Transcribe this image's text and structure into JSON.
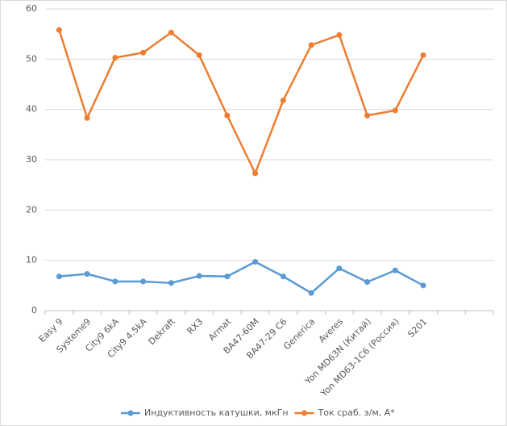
{
  "chart_data": {
    "type": "line",
    "categories": [
      "Easy 9",
      "Systeme9",
      "City9 6kA",
      "City9 4.5kA",
      "Dekraft",
      "RX3",
      "Armat",
      "BA47-60M",
      "BA47-29 C6",
      "Generica",
      "Averes",
      "Yon MD63N (Китай)",
      "Yon MD63-1C6 (Россия)",
      "S201",
      null,
      null
    ],
    "series": [
      {
        "name": "Индуктивность катушки, мкГн",
        "color": "#5b9bd5",
        "values": [
          6.8,
          7.3,
          5.8,
          5.8,
          5.5,
          6.9,
          6.8,
          9.7,
          6.8,
          3.5,
          8.4,
          5.7,
          8.0,
          5.0,
          null,
          null
        ]
      },
      {
        "name": "Ток сраб. э/м, А*",
        "color": "#ed7d31",
        "values": [
          55.8,
          38.3,
          50.3,
          51.3,
          55.3,
          50.8,
          38.8,
          27.3,
          41.8,
          52.8,
          54.8,
          38.8,
          39.8,
          50.8,
          null,
          null
        ]
      }
    ],
    "ylim": [
      0,
      60
    ],
    "yticks": [
      0,
      10,
      20,
      30,
      40,
      50,
      60
    ],
    "grid": true,
    "legend": "bottom"
  }
}
